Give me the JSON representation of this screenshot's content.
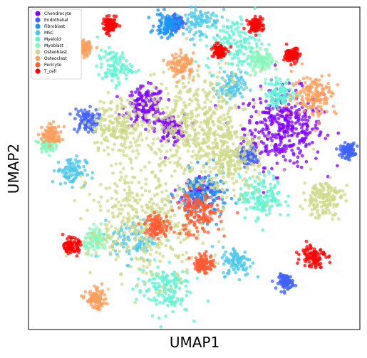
{
  "chart_data": {
    "type": "scatter",
    "title": "",
    "xlabel": "UMAP1",
    "ylabel": "UMAP2",
    "xlim": [
      -13.5,
      13.5
    ],
    "ylim": [
      -13.5,
      13.5
    ],
    "grid": false,
    "ticks_shown": false,
    "legend_placement": "top-left",
    "series": [
      {
        "name": "Chondrocyte",
        "color": "#8000ff",
        "clusters": [
          {
            "x": 7.3,
            "y": 3.4,
            "spread": 1.6,
            "weight": 6
          },
          {
            "x": -4.0,
            "y": 5.2,
            "spread": 0.8,
            "weight": 2
          },
          {
            "x": -2.0,
            "y": 3.3,
            "spread": 0.6,
            "weight": 1
          },
          {
            "x": 0.5,
            "y": -2.0,
            "spread": 0.7,
            "weight": 1
          }
        ]
      },
      {
        "name": "Endothelial",
        "color": "#4062fa",
        "clusters": [
          {
            "x": -8.8,
            "y": 4.0,
            "spread": 0.5,
            "weight": 1
          },
          {
            "x": 4.3,
            "y": 1.0,
            "spread": 0.4,
            "weight": 1
          },
          {
            "x": 12.5,
            "y": 1.5,
            "spread": 0.3,
            "weight": 1
          },
          {
            "x": 7.5,
            "y": -9.5,
            "spread": 0.3,
            "weight": 1
          },
          {
            "x": -1.5,
            "y": 12.2,
            "spread": 0.3,
            "weight": 1
          }
        ]
      },
      {
        "name": "Fibroblast",
        "color": "#1996f3",
        "clusters": [
          {
            "x": 0.7,
            "y": -2.2,
            "spread": 1.0,
            "weight": 2
          },
          {
            "x": -2.2,
            "y": 12.0,
            "spread": 0.5,
            "weight": 1
          }
        ]
      },
      {
        "name": "MSC",
        "color": "#4dc8ea",
        "clusters": [
          {
            "x": -10.0,
            "y": -0.2,
            "spread": 0.6,
            "weight": 1
          },
          {
            "x": 3.0,
            "y": 6.8,
            "spread": 0.6,
            "weight": 1
          },
          {
            "x": -5.0,
            "y": -6.0,
            "spread": 0.9,
            "weight": 1
          },
          {
            "x": 3.5,
            "y": -7.8,
            "spread": 0.6,
            "weight": 1
          },
          {
            "x": 0.5,
            "y": 12.5,
            "spread": 0.8,
            "weight": 1
          }
        ]
      },
      {
        "name": "Myeloid",
        "color": "#5ff3d2",
        "clusters": [
          {
            "x": 3.2,
            "y": 10.4,
            "spread": 1.1,
            "weight": 2
          },
          {
            "x": -6.5,
            "y": 8.5,
            "spread": 0.7,
            "weight": 1
          },
          {
            "x": -2.5,
            "y": -10.0,
            "spread": 1.1,
            "weight": 2
          },
          {
            "x": 5.5,
            "y": -2.4,
            "spread": 0.9,
            "weight": 2
          },
          {
            "x": 7.0,
            "y": 6.3,
            "spread": 0.6,
            "weight": 1
          }
        ]
      },
      {
        "name": "Myoblast",
        "color": "#88f7bb",
        "clusters": [
          {
            "x": -12.0,
            "y": 2.0,
            "spread": 0.3,
            "weight": 1
          },
          {
            "x": 5.5,
            "y": 9.0,
            "spread": 0.5,
            "weight": 1
          },
          {
            "x": -8.0,
            "y": -6.0,
            "spread": 0.5,
            "weight": 1
          }
        ]
      },
      {
        "name": "Osteoblast",
        "color": "#cfd98a",
        "clusters": [
          {
            "x": 0.3,
            "y": 3.6,
            "spread": 2.2,
            "weight": 8
          },
          {
            "x": -3.8,
            "y": -4.5,
            "spread": 2.4,
            "weight": 7
          },
          {
            "x": -6.0,
            "y": 3.5,
            "spread": 1.2,
            "weight": 3
          },
          {
            "x": 10.5,
            "y": -2.5,
            "spread": 0.8,
            "weight": 2
          },
          {
            "x": 2.8,
            "y": 0.5,
            "spread": 1.2,
            "weight": 3
          }
        ]
      },
      {
        "name": "Osteoclast",
        "color": "#ff9e5c",
        "clusters": [
          {
            "x": 9.8,
            "y": 6.2,
            "spread": 0.9,
            "weight": 2
          },
          {
            "x": -11.6,
            "y": 2.8,
            "spread": 0.4,
            "weight": 1
          },
          {
            "x": -1.0,
            "y": 8.6,
            "spread": 0.5,
            "weight": 1
          },
          {
            "x": -9.0,
            "y": 10.0,
            "spread": 0.3,
            "weight": 1
          },
          {
            "x": -8.0,
            "y": -11.0,
            "spread": 0.4,
            "weight": 1
          }
        ]
      },
      {
        "name": "Pericyte",
        "color": "#ff5a30",
        "clusters": [
          {
            "x": 0.3,
            "y": -3.8,
            "spread": 0.9,
            "weight": 2
          },
          {
            "x": -3.0,
            "y": -4.8,
            "spread": 0.5,
            "weight": 1
          },
          {
            "x": 0.8,
            "y": -8.0,
            "spread": 0.4,
            "weight": 1
          }
        ]
      },
      {
        "name": "T_cell",
        "color": "#ff0000",
        "clusters": [
          {
            "x": -6.8,
            "y": 12.0,
            "spread": 0.3,
            "weight": 1
          },
          {
            "x": 5.0,
            "y": 12.0,
            "spread": 0.3,
            "weight": 1
          },
          {
            "x": 9.7,
            "y": -7.3,
            "spread": 0.5,
            "weight": 1
          },
          {
            "x": 2.0,
            "y": 9.8,
            "spread": 0.3,
            "weight": 1
          },
          {
            "x": 8.0,
            "y": 9.5,
            "spread": 0.3,
            "weight": 1
          },
          {
            "x": -10.0,
            "y": -6.5,
            "spread": 0.3,
            "weight": 1
          }
        ]
      }
    ]
  }
}
